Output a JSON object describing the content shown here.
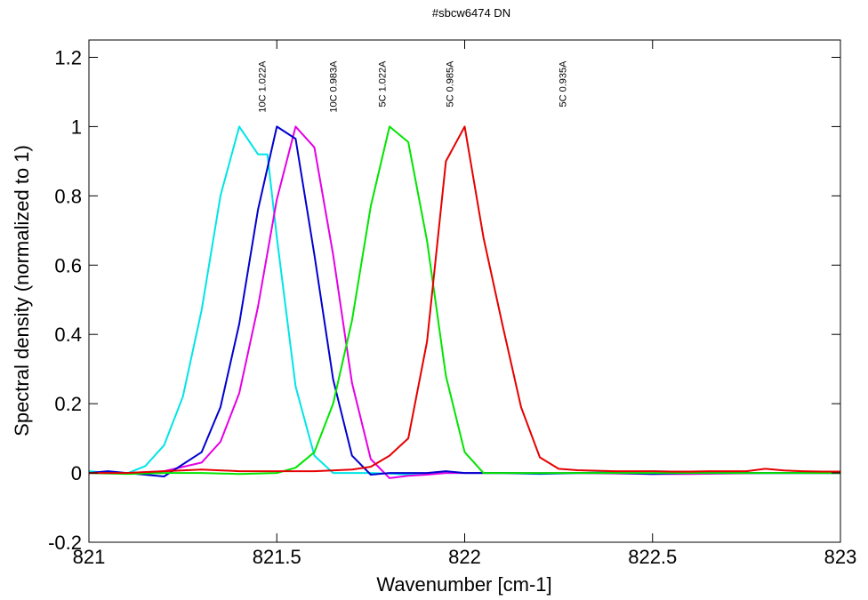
{
  "chart_data": {
    "type": "line",
    "title": "#sbcw6474 DN",
    "xlabel": "Wavenumber [cm-1]",
    "ylabel": "Spectral density (normalized to 1)",
    "xlim": [
      821,
      823
    ],
    "ylim": [
      -0.2,
      1.25
    ],
    "xticks": [
      821,
      821.5,
      822,
      822.5,
      823
    ],
    "xtick_labels": [
      "821",
      "821.5",
      "822",
      "822.5",
      "823"
    ],
    "yticks": [
      -0.2,
      0,
      0.2,
      0.4,
      0.6,
      0.8,
      1,
      1.2
    ],
    "ytick_labels": [
      "-0.2",
      "0",
      "0.2",
      "0.4",
      "0.6",
      "0.8",
      "1",
      "1.2"
    ],
    "grid": false,
    "annotations": [
      {
        "text": "10C 1.022A",
        "x": 821.46,
        "y": 1.2
      },
      {
        "text": "10C 0.983A",
        "x": 821.65,
        "y": 1.2
      },
      {
        "text": "5C 1.022A",
        "x": 821.78,
        "y": 1.2
      },
      {
        "text": "5C 0.985A",
        "x": 821.96,
        "y": 1.2
      },
      {
        "text": "5C 0.935A",
        "x": 822.26,
        "y": 1.2
      }
    ],
    "series": [
      {
        "color": "#00e5e5",
        "x": [
          821,
          821.05,
          821.1,
          821.15,
          821.2,
          821.25,
          821.3,
          821.35,
          821.4,
          821.45,
          821.475,
          821.5,
          821.55,
          821.6,
          821.65,
          821.7,
          821.75,
          821.8,
          821.85,
          821.9,
          821.95,
          822,
          822.1,
          822.2,
          822.3,
          822.5,
          822.7,
          822.9,
          823
        ],
        "y": [
          0.005,
          0.0,
          -0.002,
          0.02,
          0.08,
          0.22,
          0.47,
          0.8,
          1.0,
          0.92,
          0.92,
          0.68,
          0.25,
          0.05,
          0.0,
          0.0,
          0.0,
          -0.002,
          -0.005,
          -0.002,
          0.0,
          0.0,
          0.0,
          -0.003,
          0.0,
          0.005,
          0.0,
          0.0,
          0.0
        ]
      },
      {
        "color": "#e500e5",
        "x": [
          821,
          821.1,
          821.2,
          821.3,
          821.35,
          821.4,
          821.45,
          821.5,
          821.55,
          821.6,
          821.65,
          821.7,
          821.75,
          821.8,
          821.85,
          821.9,
          821.95,
          822,
          822.1,
          822.3,
          822.5,
          822.6,
          822.8,
          823
        ],
        "y": [
          0.0,
          0.0,
          0.005,
          0.03,
          0.09,
          0.23,
          0.48,
          0.79,
          1.0,
          0.94,
          0.63,
          0.26,
          0.04,
          -0.015,
          -0.008,
          -0.005,
          0.0,
          0.0,
          0.0,
          0.0,
          -0.003,
          -0.003,
          0.0,
          0.0
        ]
      },
      {
        "color": "#0000d0",
        "x": [
          821,
          821.05,
          821.1,
          821.2,
          821.3,
          821.35,
          821.4,
          821.45,
          821.5,
          821.55,
          821.6,
          821.65,
          821.7,
          821.75,
          821.8,
          821.85,
          821.9,
          821.95,
          822,
          822.1,
          822.2,
          822.3,
          822.4,
          822.5,
          822.6,
          822.7,
          822.8,
          822.9,
          823
        ],
        "y": [
          0.0,
          0.005,
          0.0,
          -0.01,
          0.06,
          0.19,
          0.43,
          0.76,
          1.0,
          0.965,
          0.63,
          0.27,
          0.05,
          -0.005,
          0.0,
          0.0,
          0.0,
          0.005,
          0.0,
          0.0,
          -0.002,
          0.0,
          0.0,
          -0.003,
          0.0,
          0.0,
          0.0,
          0.0,
          0.0
        ]
      },
      {
        "color": "#00e500",
        "x": [
          821,
          821.1,
          821.2,
          821.3,
          821.4,
          821.5,
          821.55,
          821.6,
          821.65,
          821.7,
          821.75,
          821.8,
          821.85,
          821.9,
          821.95,
          822,
          822.05,
          822.1,
          822.2,
          822.4,
          822.6,
          822.8,
          823
        ],
        "y": [
          0.0,
          -0.003,
          0.0,
          0.0,
          -0.003,
          0.0,
          0.015,
          0.06,
          0.2,
          0.44,
          0.77,
          1.0,
          0.955,
          0.67,
          0.28,
          0.06,
          0.0,
          0.0,
          0.0,
          0.0,
          0.0,
          0.0,
          0.0
        ]
      },
      {
        "color": "#e50000",
        "x": [
          821,
          821.1,
          821.2,
          821.3,
          821.4,
          821.5,
          821.6,
          821.7,
          821.75,
          821.8,
          821.85,
          821.9,
          821.95,
          822,
          822.05,
          822.1,
          822.15,
          822.2,
          822.25,
          822.3,
          822.4,
          822.5,
          822.55,
          822.6,
          822.65,
          822.7,
          822.75,
          822.8,
          822.85,
          822.9,
          822.95,
          823
        ],
        "y": [
          0.0,
          0.0,
          0.005,
          0.01,
          0.005,
          0.005,
          0.005,
          0.01,
          0.018,
          0.05,
          0.1,
          0.38,
          0.9,
          1.0,
          0.68,
          0.43,
          0.19,
          0.045,
          0.012,
          0.008,
          0.005,
          0.005,
          0.004,
          0.004,
          0.005,
          0.005,
          0.005,
          0.012,
          0.007,
          0.005,
          0.004,
          0.004
        ]
      }
    ]
  }
}
